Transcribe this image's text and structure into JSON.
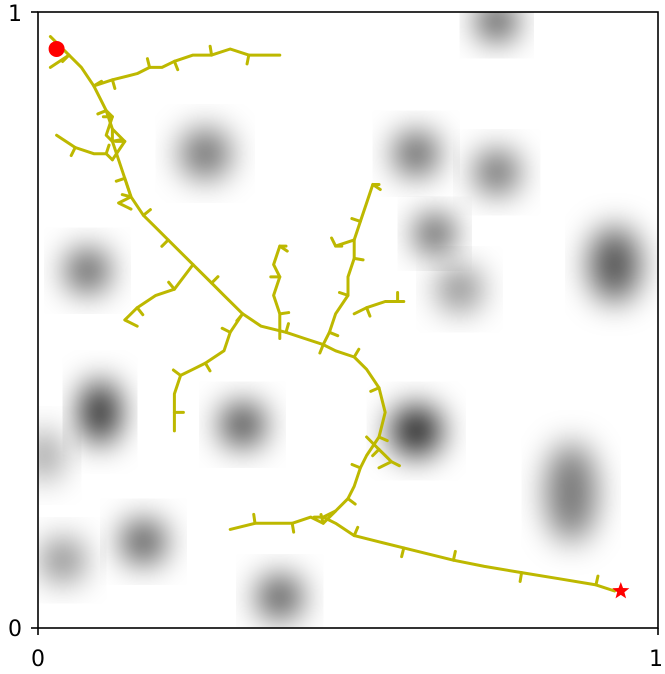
{
  "chart_data": {
    "type": "scatter",
    "title": "",
    "xlabel": "",
    "ylabel": "",
    "xlim": [
      0,
      1
    ],
    "ylim": [
      0,
      1
    ],
    "x_ticks": [
      {
        "value": 0,
        "label": "0"
      },
      {
        "value": 1,
        "label": "1"
      }
    ],
    "y_ticks": [
      {
        "value": 0,
        "label": "0"
      },
      {
        "value": 1,
        "label": "1"
      }
    ],
    "grid": false,
    "colors": {
      "tree": "#bdb800",
      "start": "#ff0000",
      "goal": "#ff0000",
      "obstacle": "#000000"
    },
    "obstacles": [
      {
        "x": 0.74,
        "y": 0.985,
        "sx": 0.03,
        "sy": 0.03,
        "strength": 0.85
      },
      {
        "x": 0.27,
        "y": 0.77,
        "sx": 0.04,
        "sy": 0.04,
        "strength": 0.6
      },
      {
        "x": 0.61,
        "y": 0.77,
        "sx": 0.035,
        "sy": 0.035,
        "strength": 0.7
      },
      {
        "x": 0.74,
        "y": 0.74,
        "sx": 0.035,
        "sy": 0.035,
        "strength": 0.65
      },
      {
        "x": 0.64,
        "y": 0.64,
        "sx": 0.03,
        "sy": 0.03,
        "strength": 0.8
      },
      {
        "x": 0.68,
        "y": 0.55,
        "sx": 0.035,
        "sy": 0.035,
        "strength": 0.5
      },
      {
        "x": 0.08,
        "y": 0.58,
        "sx": 0.035,
        "sy": 0.035,
        "strength": 0.7
      },
      {
        "x": 0.93,
        "y": 0.59,
        "sx": 0.04,
        "sy": 0.06,
        "strength": 0.7
      },
      {
        "x": 0.1,
        "y": 0.35,
        "sx": 0.03,
        "sy": 0.05,
        "strength": 0.95
      },
      {
        "x": 0.33,
        "y": 0.33,
        "sx": 0.035,
        "sy": 0.035,
        "strength": 0.8
      },
      {
        "x": 0.61,
        "y": 0.32,
        "sx": 0.04,
        "sy": 0.04,
        "strength": 0.95
      },
      {
        "x": 0.01,
        "y": 0.28,
        "sx": 0.03,
        "sy": 0.04,
        "strength": 0.4
      },
      {
        "x": 0.86,
        "y": 0.22,
        "sx": 0.04,
        "sy": 0.08,
        "strength": 0.55
      },
      {
        "x": 0.17,
        "y": 0.14,
        "sx": 0.035,
        "sy": 0.035,
        "strength": 0.75
      },
      {
        "x": 0.04,
        "y": 0.11,
        "sx": 0.035,
        "sy": 0.035,
        "strength": 0.5
      },
      {
        "x": 0.39,
        "y": 0.05,
        "sx": 0.035,
        "sy": 0.035,
        "strength": 0.75
      }
    ],
    "start": {
      "x": 0.03,
      "y": 0.94
    },
    "goal": {
      "x": 0.94,
      "y": 0.06
    },
    "tree_polylines": [
      [
        [
          0.02,
          0.96
        ],
        [
          0.05,
          0.93
        ],
        [
          0.07,
          0.91
        ],
        [
          0.09,
          0.88
        ],
        [
          0.1,
          0.86
        ],
        [
          0.11,
          0.84
        ],
        [
          0.12,
          0.81
        ],
        [
          0.12,
          0.79
        ],
        [
          0.13,
          0.76
        ],
        [
          0.14,
          0.73
        ],
        [
          0.15,
          0.7
        ],
        [
          0.17,
          0.67
        ],
        [
          0.19,
          0.65
        ],
        [
          0.21,
          0.63
        ],
        [
          0.25,
          0.59
        ],
        [
          0.28,
          0.56
        ],
        [
          0.3,
          0.54
        ],
        [
          0.33,
          0.51
        ],
        [
          0.36,
          0.49
        ],
        [
          0.4,
          0.48
        ],
        [
          0.43,
          0.47
        ],
        [
          0.46,
          0.46
        ],
        [
          0.48,
          0.45
        ],
        [
          0.51,
          0.44
        ],
        [
          0.53,
          0.42
        ],
        [
          0.55,
          0.39
        ],
        [
          0.56,
          0.35
        ],
        [
          0.55,
          0.31
        ],
        [
          0.53,
          0.28
        ],
        [
          0.52,
          0.26
        ],
        [
          0.51,
          0.23
        ],
        [
          0.5,
          0.21
        ],
        [
          0.48,
          0.19
        ],
        [
          0.46,
          0.18
        ],
        [
          0.48,
          0.17
        ],
        [
          0.51,
          0.15
        ],
        [
          0.55,
          0.14
        ],
        [
          0.59,
          0.13
        ],
        [
          0.63,
          0.12
        ],
        [
          0.67,
          0.11
        ],
        [
          0.72,
          0.1
        ],
        [
          0.78,
          0.09
        ],
        [
          0.84,
          0.08
        ],
        [
          0.9,
          0.07
        ],
        [
          0.93,
          0.06
        ]
      ],
      [
        [
          0.02,
          0.91
        ],
        [
          0.05,
          0.93
        ]
      ],
      [
        [
          0.09,
          0.88
        ],
        [
          0.12,
          0.89
        ],
        [
          0.16,
          0.9
        ],
        [
          0.18,
          0.91
        ],
        [
          0.2,
          0.91
        ],
        [
          0.22,
          0.92
        ],
        [
          0.25,
          0.93
        ],
        [
          0.28,
          0.93
        ],
        [
          0.31,
          0.94
        ],
        [
          0.34,
          0.93
        ],
        [
          0.36,
          0.93
        ],
        [
          0.39,
          0.93
        ]
      ],
      [
        [
          0.11,
          0.84
        ],
        [
          0.12,
          0.83
        ],
        [
          0.11,
          0.8
        ],
        [
          0.12,
          0.79
        ]
      ],
      [
        [
          0.03,
          0.8
        ],
        [
          0.06,
          0.78
        ],
        [
          0.09,
          0.77
        ],
        [
          0.11,
          0.77
        ],
        [
          0.12,
          0.76
        ]
      ],
      [
        [
          0.12,
          0.81
        ],
        [
          0.14,
          0.79
        ],
        [
          0.12,
          0.76
        ]
      ],
      [
        [
          0.14,
          0.73
        ],
        [
          0.15,
          0.7
        ],
        [
          0.13,
          0.69
        ],
        [
          0.15,
          0.68
        ]
      ],
      [
        [
          0.25,
          0.59
        ],
        [
          0.22,
          0.55
        ],
        [
          0.19,
          0.54
        ],
        [
          0.16,
          0.52
        ],
        [
          0.14,
          0.5
        ],
        [
          0.16,
          0.49
        ]
      ],
      [
        [
          0.33,
          0.51
        ],
        [
          0.31,
          0.48
        ],
        [
          0.3,
          0.45
        ],
        [
          0.27,
          0.43
        ],
        [
          0.25,
          0.42
        ],
        [
          0.23,
          0.41
        ],
        [
          0.22,
          0.38
        ],
        [
          0.22,
          0.35
        ],
        [
          0.22,
          0.32
        ]
      ],
      [
        [
          0.39,
          0.47
        ],
        [
          0.39,
          0.51
        ],
        [
          0.38,
          0.54
        ],
        [
          0.39,
          0.57
        ],
        [
          0.38,
          0.59
        ],
        [
          0.39,
          0.62
        ],
        [
          0.4,
          0.62
        ]
      ],
      [
        [
          0.46,
          0.46
        ],
        [
          0.47,
          0.48
        ],
        [
          0.48,
          0.51
        ],
        [
          0.5,
          0.54
        ],
        [
          0.5,
          0.57
        ],
        [
          0.51,
          0.6
        ],
        [
          0.51,
          0.63
        ],
        [
          0.52,
          0.66
        ],
        [
          0.53,
          0.69
        ],
        [
          0.54,
          0.72
        ],
        [
          0.55,
          0.72
        ]
      ],
      [
        [
          0.51,
          0.51
        ],
        [
          0.53,
          0.52
        ],
        [
          0.56,
          0.53
        ],
        [
          0.58,
          0.53
        ],
        [
          0.59,
          0.53
        ]
      ],
      [
        [
          0.51,
          0.63
        ],
        [
          0.48,
          0.62
        ],
        [
          0.49,
          0.62
        ]
      ],
      [
        [
          0.53,
          0.31
        ],
        [
          0.55,
          0.29
        ],
        [
          0.56,
          0.28
        ],
        [
          0.57,
          0.27
        ],
        [
          0.55,
          0.26
        ]
      ],
      [
        [
          0.48,
          0.19
        ],
        [
          0.46,
          0.17
        ],
        [
          0.44,
          0.18
        ],
        [
          0.41,
          0.17
        ],
        [
          0.38,
          0.17
        ],
        [
          0.35,
          0.17
        ],
        [
          0.31,
          0.16
        ]
      ]
    ]
  }
}
